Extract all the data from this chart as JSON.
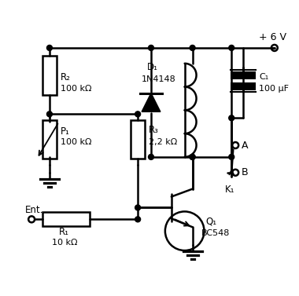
{
  "bg_color": "#ffffff",
  "line_color": "#000000",
  "lw": 1.8,
  "components": {
    "R2": {
      "label": "R₂",
      "value": "100 kΩ"
    },
    "R1": {
      "label": "R₁",
      "value": "10 kΩ"
    },
    "R3": {
      "label": "R₃",
      "value": "2,2 kΩ"
    },
    "P1": {
      "label": "P₁",
      "value": "100 kΩ"
    },
    "D1": {
      "label": "D₁",
      "value": "1N4148"
    },
    "C1": {
      "label": "C₁",
      "value": "100 μF"
    },
    "K1": {
      "label": "K₁"
    },
    "Q1": {
      "label": "Q₁",
      "value": "BC548"
    },
    "Vcc": {
      "label": "+ 6 V"
    },
    "Ent": {
      "label": "Ent."
    },
    "A": {
      "label": "A"
    },
    "B": {
      "label": "B"
    }
  }
}
